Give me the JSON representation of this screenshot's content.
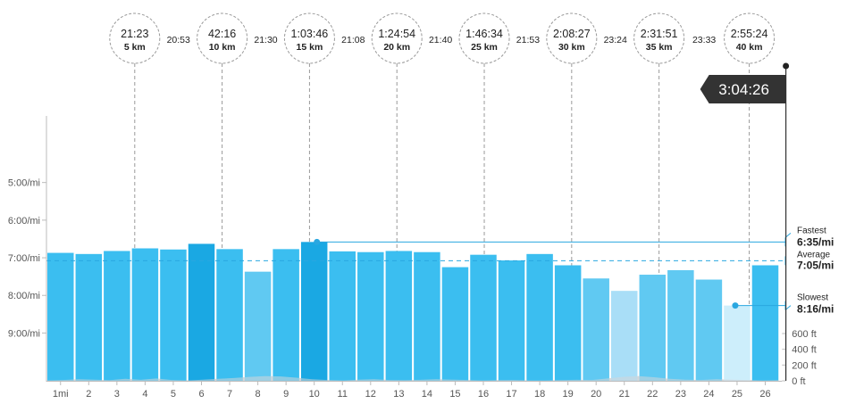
{
  "chart_data": {
    "type": "bar",
    "categories": [
      "1mi",
      "2",
      "3",
      "4",
      "5",
      "6",
      "7",
      "8",
      "9",
      "10",
      "11",
      "12",
      "13",
      "14",
      "15",
      "16",
      "17",
      "18",
      "19",
      "20",
      "21",
      "22",
      "23",
      "24",
      "25",
      "26"
    ],
    "series": [
      {
        "values": [
          6.87,
          6.9,
          6.82,
          6.75,
          6.78,
          6.63,
          6.77,
          7.37,
          6.77,
          6.58,
          6.83,
          6.85,
          6.82,
          6.85,
          7.25,
          6.92,
          7.07,
          6.9,
          7.2,
          7.55,
          7.88,
          7.45,
          7.33,
          7.58,
          8.27,
          7.2
        ]
      }
    ],
    "ylim": [
      3.23,
      10.27
    ],
    "y_ticks": [
      {
        "value": 5,
        "label": "5:00/mi"
      },
      {
        "value": 6,
        "label": "6:00/mi"
      },
      {
        "value": 7,
        "label": "7:00/mi"
      },
      {
        "value": 8,
        "label": "8:00/mi"
      },
      {
        "value": 9,
        "label": "9:00/mi"
      }
    ],
    "elevation_ticks": [
      {
        "value": 600,
        "label": "600 ft"
      },
      {
        "value": 400,
        "label": "400 ft"
      },
      {
        "value": 200,
        "label": "200 ft"
      },
      {
        "value": 0,
        "label": "0 ft"
      }
    ],
    "elevation_profile": [
      5,
      10,
      20,
      15,
      8,
      25,
      12,
      30,
      10,
      5,
      15,
      25,
      35,
      50,
      60,
      55,
      40,
      20,
      10,
      5,
      15,
      20,
      10,
      8,
      12,
      20,
      15,
      10,
      5,
      8,
      10,
      5,
      5,
      8,
      12,
      10,
      30,
      50,
      60,
      45,
      25,
      15,
      10,
      20,
      15,
      10,
      5,
      8
    ],
    "average": {
      "value": 7.08,
      "label": "Average",
      "pace": "7:05/mi"
    },
    "fastest": {
      "index": 9,
      "label": "Fastest",
      "pace": "6:35/mi"
    },
    "slowest": {
      "index": 24,
      "label": "Slowest",
      "pace": "8:16/mi"
    },
    "finish_time": "3:04:26",
    "finish_mile": 26.2,
    "checkpoints": [
      {
        "mile": 3.1,
        "time": "21:23",
        "distance": "5 km"
      },
      {
        "mile": 6.2,
        "time": "42:16",
        "distance": "10 km"
      },
      {
        "mile": 9.3,
        "time": "1:03:46",
        "distance": "15 km"
      },
      {
        "mile": 12.4,
        "time": "1:24:54",
        "distance": "20 km"
      },
      {
        "mile": 15.5,
        "time": "1:46:34",
        "distance": "25 km"
      },
      {
        "mile": 18.6,
        "time": "2:08:27",
        "distance": "30 km"
      },
      {
        "mile": 21.7,
        "time": "2:31:51",
        "distance": "35 km"
      },
      {
        "mile": 24.9,
        "time": "2:55:24",
        "distance": "40 km"
      }
    ],
    "segment_splits": [
      "20:53",
      "21:30",
      "21:08",
      "21:40",
      "21:53",
      "23:24",
      "23:33"
    ],
    "colors": {
      "bar_fast": "#1aa8e3",
      "bar_mid": "#3bbef0",
      "bar_slow": "#a9def7",
      "bar_slowest": "#cdeefb",
      "line": "#2aa7e0",
      "text": "#555555",
      "grid": "#d0d0d0",
      "finish_flag": "#333333",
      "elevation": "#d4d6d8"
    }
  }
}
